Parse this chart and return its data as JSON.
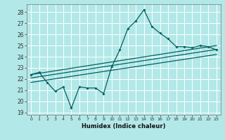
{
  "xlabel": "Humidex (Indice chaleur)",
  "bg_color": "#b3e8e8",
  "grid_color": "#ffffff",
  "line_color": "#006060",
  "xlim": [
    -0.5,
    23.5
  ],
  "ylim": [
    18.8,
    28.7
  ],
  "yticks": [
    19,
    20,
    21,
    22,
    23,
    24,
    25,
    26,
    27,
    28
  ],
  "xticks": [
    0,
    1,
    2,
    3,
    4,
    5,
    6,
    7,
    8,
    9,
    10,
    11,
    12,
    13,
    14,
    15,
    16,
    17,
    18,
    19,
    20,
    21,
    22,
    23
  ],
  "main_line_x": [
    0,
    1,
    2,
    3,
    4,
    5,
    6,
    7,
    8,
    9,
    10,
    11,
    12,
    13,
    14,
    15,
    16,
    17,
    18,
    19,
    20,
    21,
    22,
    23
  ],
  "main_line_y": [
    22.4,
    22.6,
    21.7,
    20.9,
    21.3,
    19.4,
    21.3,
    21.2,
    21.2,
    20.7,
    23.1,
    24.6,
    26.5,
    27.2,
    28.2,
    26.7,
    26.1,
    25.6,
    24.9,
    24.9,
    24.8,
    25.0,
    24.9,
    24.6
  ],
  "trend_line1_x": [
    0,
    23
  ],
  "trend_line1_y": [
    22.4,
    25.0
  ],
  "trend_line2_x": [
    0,
    23
  ],
  "trend_line2_y": [
    22.1,
    24.65
  ],
  "trend_line3_x": [
    0,
    23
  ],
  "trend_line3_y": [
    21.7,
    24.2
  ]
}
